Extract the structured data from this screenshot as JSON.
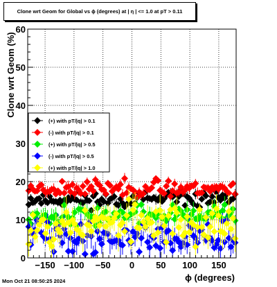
{
  "chart_data": {
    "type": "scatter",
    "title": "Clone wrt Geom for Global vs ϕ (degrees) at | η | <= 1.0 at pT > 0.11",
    "xlabel": "ϕ (degrees)",
    "ylabel": "Clone wrt Geom (%)",
    "xlim": [
      -180,
      180
    ],
    "ylim": [
      0,
      60
    ],
    "x_ticks": [
      -150,
      -100,
      -50,
      0,
      50,
      100,
      150
    ],
    "x_tick_labels": [
      "−150",
      "−100",
      "−50",
      "0",
      "50",
      "100",
      "150"
    ],
    "y_ticks": [
      0,
      10,
      20,
      30,
      40,
      50,
      60
    ],
    "y_tick_labels": [
      "0",
      "10",
      "20",
      "30",
      "40",
      "50",
      "60"
    ],
    "grid": true,
    "legend_position": "middle-left",
    "series": [
      {
        "name": "(+) with pT/|q| > 0.1",
        "color": "#000000",
        "center": 15.3,
        "spread": 1.3,
        "err": 0.9,
        "seed": 11
      },
      {
        "name": "(-) with pT/|q| > 0.1",
        "color": "#ff0000",
        "center": 18.3,
        "spread": 1.3,
        "err": 1.0,
        "seed": 23
      },
      {
        "name": "(+) with pT/|q| > 0.5",
        "color": "#00ee00",
        "center": 11.2,
        "spread": 1.6,
        "err": 1.5,
        "seed": 37
      },
      {
        "name": "(-) with pT/|q| > 0.5",
        "color": "#0000ff",
        "center": 5.5,
        "spread": 2.6,
        "err": 2.2,
        "seed": 41
      },
      {
        "name": "(+) with pT/|q| > 1.0",
        "color": "#ffff00",
        "center": 9.0,
        "spread": 3.2,
        "err": 2.8,
        "seed": 53
      }
    ],
    "x_bins": 100
  },
  "timestamp": "Mon Oct 21 08:50:25 2024"
}
